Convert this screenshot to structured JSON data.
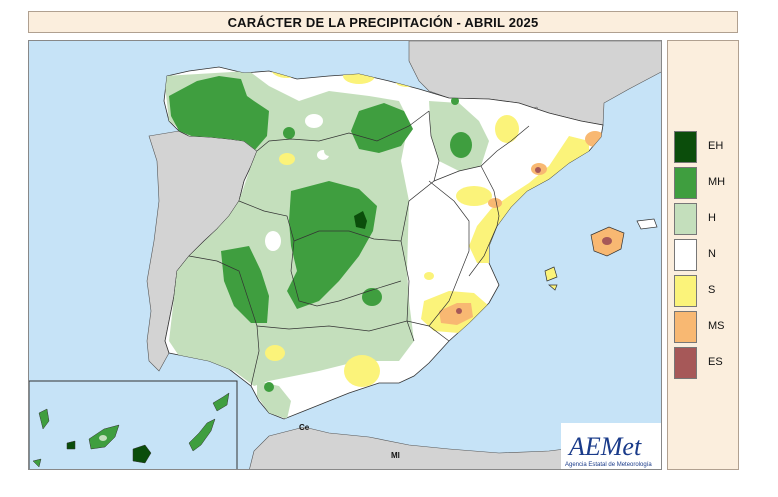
{
  "title": "CARÁCTER DE LA PRECIPITACIÓN - ABRIL 2025",
  "legend": [
    {
      "code": "EH",
      "color": "#0b4d0b"
    },
    {
      "code": "MH",
      "color": "#3f9e3f"
    },
    {
      "code": "H",
      "color": "#c4dfbc"
    },
    {
      "code": "N",
      "color": "#ffffff"
    },
    {
      "code": "S",
      "color": "#fbf37a"
    },
    {
      "code": "MS",
      "color": "#f8b872"
    },
    {
      "code": "ES",
      "color": "#a65858"
    }
  ],
  "places": {
    "ceuta": "Ce",
    "melilla": "Ml"
  },
  "logo": {
    "brand": "AEMet",
    "subtitle": "Agencia Estatal de Meteorología"
  },
  "colors": {
    "sea": "#c6e3f7",
    "land_other": "#d3d3d3",
    "border": "#333333"
  }
}
